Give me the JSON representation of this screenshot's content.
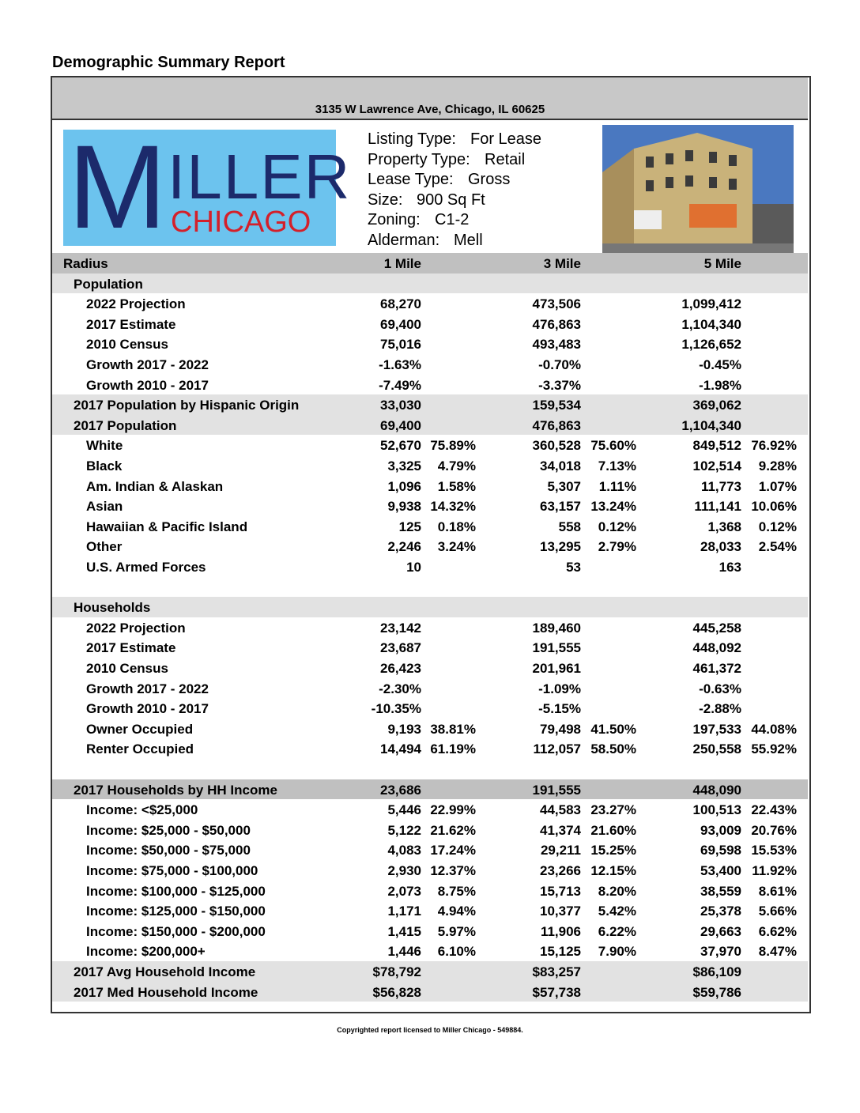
{
  "title": "Demographic Summary Report",
  "address": "3135 W Lawrence Ave, Chicago, IL 60625",
  "logo": {
    "initial": "M",
    "rest": "ILLER",
    "city": "CHICAGO"
  },
  "listing": [
    {
      "label": "Listing Type:",
      "value": "For Lease"
    },
    {
      "label": "Property Type:",
      "value": "Retail"
    },
    {
      "label": "Lease Type:",
      "value": "Gross"
    },
    {
      "label": "Size:",
      "value": "900 Sq Ft"
    },
    {
      "label": "Zoning:",
      "value": "C1-2"
    },
    {
      "label": "Alderman:",
      "value": "Mell"
    }
  ],
  "table": {
    "header": [
      "Radius",
      "1 Mile",
      "3 Mile",
      "5 Mile"
    ],
    "rows": [
      {
        "level": 1,
        "shade": "light",
        "cells": [
          "Population",
          null,
          null,
          null,
          null,
          null,
          null
        ]
      },
      {
        "level": 2,
        "cells": [
          "2022 Projection",
          "68,270",
          null,
          "473,506",
          null,
          "1,099,412",
          null
        ]
      },
      {
        "level": 2,
        "cells": [
          "2017 Estimate",
          "69,400",
          null,
          "476,863",
          null,
          "1,104,340",
          null
        ]
      },
      {
        "level": 2,
        "cells": [
          "2010 Census",
          "75,016",
          null,
          "493,483",
          null,
          "1,126,652",
          null
        ]
      },
      {
        "level": 2,
        "cells": [
          "Growth 2017 - 2022",
          "-1.63%",
          null,
          "-0.70%",
          null,
          "-0.45%",
          null
        ]
      },
      {
        "level": 2,
        "cells": [
          "Growth 2010 - 2017",
          "-7.49%",
          null,
          "-3.37%",
          null,
          "-1.98%",
          null
        ]
      },
      {
        "level": 1,
        "shade": "light",
        "cells": [
          "2017 Population by Hispanic Origin",
          "33,030",
          null,
          "159,534",
          null,
          "369,062",
          null
        ]
      },
      {
        "level": 1,
        "shade": "light",
        "cells": [
          "2017 Population",
          "69,400",
          null,
          "476,863",
          null,
          "1,104,340",
          null
        ]
      },
      {
        "level": 2,
        "cells": [
          "White",
          "52,670",
          "75.89%",
          "360,528",
          "75.60%",
          "849,512",
          "76.92%"
        ]
      },
      {
        "level": 2,
        "cells": [
          "Black",
          "3,325",
          "4.79%",
          "34,018",
          "7.13%",
          "102,514",
          "9.28%"
        ]
      },
      {
        "level": 2,
        "cells": [
          "Am. Indian & Alaskan",
          "1,096",
          "1.58%",
          "5,307",
          "1.11%",
          "11,773",
          "1.07%"
        ]
      },
      {
        "level": 2,
        "cells": [
          "Asian",
          "9,938",
          "14.32%",
          "63,157",
          "13.24%",
          "111,141",
          "10.06%"
        ]
      },
      {
        "level": 2,
        "cells": [
          "Hawaiian & Pacific Island",
          "125",
          "0.18%",
          "558",
          "0.12%",
          "1,368",
          "0.12%"
        ]
      },
      {
        "level": 2,
        "cells": [
          "Other",
          "2,246",
          "3.24%",
          "13,295",
          "2.79%",
          "28,033",
          "2.54%"
        ]
      },
      {
        "level": 2,
        "cells": [
          "U.S. Armed Forces",
          "10",
          null,
          "53",
          null,
          "163",
          null
        ]
      },
      {
        "level": 1,
        "shade": "light",
        "space_before": true,
        "cells": [
          "Households",
          null,
          null,
          null,
          null,
          null,
          null
        ]
      },
      {
        "level": 2,
        "cells": [
          "2022 Projection",
          "23,142",
          null,
          "189,460",
          null,
          "445,258",
          null
        ]
      },
      {
        "level": 2,
        "cells": [
          "2017 Estimate",
          "23,687",
          null,
          "191,555",
          null,
          "448,092",
          null
        ]
      },
      {
        "level": 2,
        "cells": [
          "2010 Census",
          "26,423",
          null,
          "201,961",
          null,
          "461,372",
          null
        ]
      },
      {
        "level": 2,
        "cells": [
          "Growth 2017 - 2022",
          "-2.30%",
          null,
          "-1.09%",
          null,
          "-0.63%",
          null
        ]
      },
      {
        "level": 2,
        "cells": [
          "Growth 2010 - 2017",
          "-10.35%",
          null,
          "-5.15%",
          null,
          "-2.88%",
          null
        ]
      },
      {
        "level": 2,
        "cells": [
          "Owner Occupied",
          "9,193",
          "38.81%",
          "79,498",
          "41.50%",
          "197,533",
          "44.08%"
        ]
      },
      {
        "level": 2,
        "cells": [
          "Renter Occupied",
          "14,494",
          "61.19%",
          "112,057",
          "58.50%",
          "250,558",
          "55.92%"
        ]
      },
      {
        "level": 1,
        "shade": "dark",
        "space_before": true,
        "cells": [
          "2017 Households by HH Income",
          "23,686",
          null,
          "191,555",
          null,
          "448,090",
          null
        ]
      },
      {
        "level": 2,
        "cells": [
          "Income: <$25,000",
          "5,446",
          "22.99%",
          "44,583",
          "23.27%",
          "100,513",
          "22.43%"
        ]
      },
      {
        "level": 2,
        "cells": [
          "Income: $25,000 - $50,000",
          "5,122",
          "21.62%",
          "41,374",
          "21.60%",
          "93,009",
          "20.76%"
        ]
      },
      {
        "level": 2,
        "cells": [
          "Income: $50,000 - $75,000",
          "4,083",
          "17.24%",
          "29,211",
          "15.25%",
          "69,598",
          "15.53%"
        ]
      },
      {
        "level": 2,
        "cells": [
          "Income: $75,000 - $100,000",
          "2,930",
          "12.37%",
          "23,266",
          "12.15%",
          "53,400",
          "11.92%"
        ]
      },
      {
        "level": 2,
        "cells": [
          "Income: $100,000 - $125,000",
          "2,073",
          "8.75%",
          "15,713",
          "8.20%",
          "38,559",
          "8.61%"
        ]
      },
      {
        "level": 2,
        "cells": [
          "Income: $125,000 - $150,000",
          "1,171",
          "4.94%",
          "10,377",
          "5.42%",
          "25,378",
          "5.66%"
        ]
      },
      {
        "level": 2,
        "cells": [
          "Income: $150,000 - $200,000",
          "1,415",
          "5.97%",
          "11,906",
          "6.22%",
          "29,663",
          "6.62%"
        ]
      },
      {
        "level": 2,
        "cells": [
          "Income: $200,000+",
          "1,446",
          "6.10%",
          "15,125",
          "7.90%",
          "37,970",
          "8.47%"
        ]
      },
      {
        "level": 1,
        "shade": "light",
        "cells": [
          "2017 Avg Household Income",
          "$78,792",
          null,
          "$83,257",
          null,
          "$86,109",
          null
        ]
      },
      {
        "level": 1,
        "shade": "light",
        "cells": [
          "2017 Med Household Income",
          "$56,828",
          null,
          "$57,738",
          null,
          "$59,786",
          null
        ]
      }
    ]
  },
  "footer": "Copyrighted report licensed to Miller Chicago - 549884."
}
